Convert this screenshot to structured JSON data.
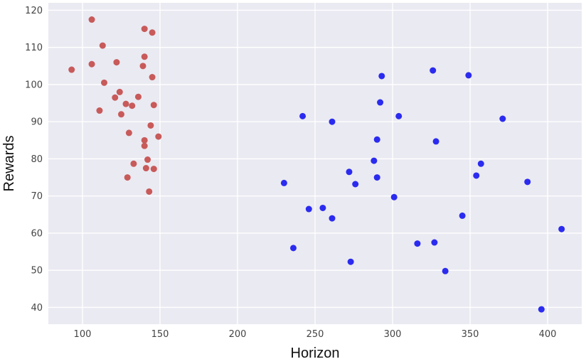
{
  "chart_data": {
    "type": "scatter",
    "title": "",
    "xlabel": "Horizon",
    "ylabel": "Rewards",
    "xlim": [
      78,
      422
    ],
    "ylim": [
      35.5,
      122
    ],
    "xticks": [
      100,
      150,
      200,
      250,
      300,
      350,
      400
    ],
    "yticks": [
      40,
      50,
      60,
      70,
      80,
      90,
      100,
      110,
      120
    ],
    "grid": true,
    "background": "#eaeaf2",
    "grid_color": "#ffffff",
    "series": [
      {
        "color": "#c85a5a",
        "points": [
          [
            93,
            104
          ],
          [
            106,
            117.5
          ],
          [
            106,
            105.5
          ],
          [
            113,
            110.5
          ],
          [
            114,
            100.5
          ],
          [
            111,
            93
          ],
          [
            121,
            96.5
          ],
          [
            122,
            106
          ],
          [
            124,
            98
          ],
          [
            125,
            92
          ],
          [
            128,
            94.8
          ],
          [
            130,
            87
          ],
          [
            132,
            94.3
          ],
          [
            133,
            78.7
          ],
          [
            129,
            75
          ],
          [
            136,
            96.7
          ],
          [
            139,
            105
          ],
          [
            140,
            107.5
          ],
          [
            140,
            115
          ],
          [
            140,
            85
          ],
          [
            140,
            83.5
          ],
          [
            141,
            77.5
          ],
          [
            142,
            79.8
          ],
          [
            143,
            71.2
          ],
          [
            144,
            89
          ],
          [
            145,
            102
          ],
          [
            145,
            114
          ],
          [
            146,
            94.5
          ],
          [
            146,
            77.3
          ],
          [
            149,
            86
          ]
        ]
      },
      {
        "color": "#2b2bf0",
        "points": [
          [
            230,
            73.5
          ],
          [
            236,
            56
          ],
          [
            242,
            91.5
          ],
          [
            246,
            66.5
          ],
          [
            255,
            66.8
          ],
          [
            261,
            64
          ],
          [
            261,
            90
          ],
          [
            272,
            76.5
          ],
          [
            273,
            52.3
          ],
          [
            276,
            73.2
          ],
          [
            288,
            79.5
          ],
          [
            290,
            85.2
          ],
          [
            290,
            75
          ],
          [
            292,
            95.2
          ],
          [
            293,
            102.3
          ],
          [
            301,
            69.7
          ],
          [
            304,
            91.5
          ],
          [
            316,
            57.2
          ],
          [
            326,
            103.8
          ],
          [
            327,
            57.5
          ],
          [
            328,
            84.7
          ],
          [
            334,
            49.8
          ],
          [
            345,
            64.7
          ],
          [
            349,
            102.5
          ],
          [
            354,
            75.5
          ],
          [
            357,
            78.7
          ],
          [
            371,
            90.8
          ],
          [
            387,
            73.8
          ],
          [
            396,
            39.5
          ],
          [
            409,
            61.1
          ]
        ]
      }
    ]
  }
}
